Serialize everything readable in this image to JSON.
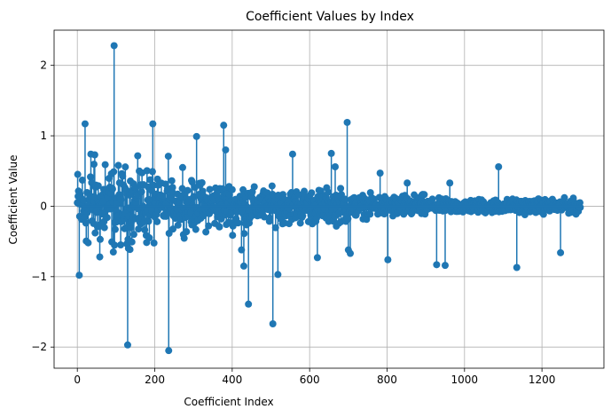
{
  "chart_data": {
    "type": "stem",
    "title": "Coefficient Values by Index",
    "xlabel": "Coefficient Index",
    "ylabel": "Coefficient Value",
    "xlim": [
      -60,
      1360
    ],
    "ylim": [
      -2.3,
      2.5
    ],
    "x_ticks": [
      0,
      200,
      400,
      600,
      800,
      1000,
      1200
    ],
    "y_ticks": [
      -2,
      -1,
      0,
      1,
      2
    ],
    "x_tick_labels": [
      "0",
      "200",
      "400",
      "600",
      "800",
      "1000",
      "1200"
    ],
    "y_tick_labels": [
      "−2",
      "−1",
      "0",
      "1",
      "2"
    ],
    "grid": true,
    "color": "#1f77b4",
    "n_points": 1300,
    "notable_points": [
      {
        "x": 5,
        "y": -0.98
      },
      {
        "x": 20,
        "y": 1.17
      },
      {
        "x": 28,
        "y": -0.52
      },
      {
        "x": 35,
        "y": 0.74
      },
      {
        "x": 45,
        "y": 0.73
      },
      {
        "x": 58,
        "y": -0.72
      },
      {
        "x": 72,
        "y": 0.59
      },
      {
        "x": 93,
        "y": -0.65
      },
      {
        "x": 95,
        "y": 2.28
      },
      {
        "x": 130,
        "y": -1.97
      },
      {
        "x": 160,
        "y": 0.5
      },
      {
        "x": 195,
        "y": 1.17
      },
      {
        "x": 235,
        "y": 0.71
      },
      {
        "x": 236,
        "y": -2.05
      },
      {
        "x": 272,
        "y": 0.55
      },
      {
        "x": 308,
        "y": 0.99
      },
      {
        "x": 378,
        "y": 1.15
      },
      {
        "x": 383,
        "y": 0.8
      },
      {
        "x": 424,
        "y": -0.62
      },
      {
        "x": 430,
        "y": -0.85
      },
      {
        "x": 442,
        "y": -1.39
      },
      {
        "x": 505,
        "y": -1.67
      },
      {
        "x": 518,
        "y": -0.97
      },
      {
        "x": 556,
        "y": 0.74
      },
      {
        "x": 620,
        "y": -0.73
      },
      {
        "x": 656,
        "y": 0.75
      },
      {
        "x": 666,
        "y": 0.56
      },
      {
        "x": 697,
        "y": 1.19
      },
      {
        "x": 700,
        "y": -0.62
      },
      {
        "x": 705,
        "y": -0.67
      },
      {
        "x": 782,
        "y": 0.47
      },
      {
        "x": 802,
        "y": -0.76
      },
      {
        "x": 852,
        "y": 0.33
      },
      {
        "x": 928,
        "y": -0.83
      },
      {
        "x": 950,
        "y": -0.84
      },
      {
        "x": 962,
        "y": 0.33
      },
      {
        "x": 1088,
        "y": 0.56
      },
      {
        "x": 1135,
        "y": -0.87
      },
      {
        "x": 1248,
        "y": -0.66
      },
      {
        "x": 1298,
        "y": 0.05
      }
    ],
    "background_amplitude": [
      {
        "x_max": 200,
        "amp": 0.5
      },
      {
        "x_max": 450,
        "amp": 0.3
      },
      {
        "x_max": 700,
        "amp": 0.22
      },
      {
        "x_max": 900,
        "amp": 0.14
      },
      {
        "x_max": 1300,
        "amp": 0.09
      }
    ]
  }
}
